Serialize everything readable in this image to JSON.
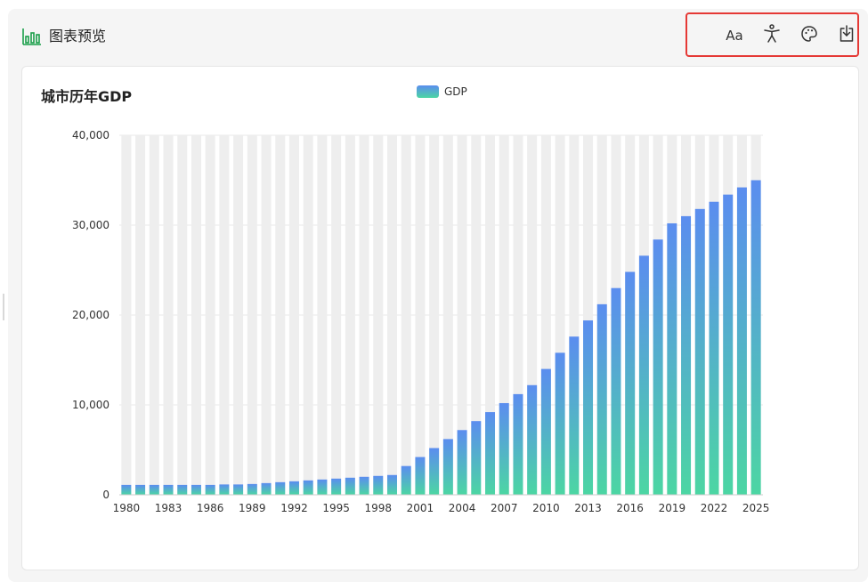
{
  "header": {
    "title": "图表预览",
    "icon": "bar-chart-icon"
  },
  "toolbar": {
    "font_label": "Aa",
    "items": [
      "font-size-icon",
      "accessibility-icon",
      "palette-icon",
      "download-icon"
    ]
  },
  "colors": {
    "bar_top": "#5b8def",
    "bar_bottom": "#4cd6a3",
    "bar_background": "#eeeeee",
    "toolbar_highlight": "#e53935",
    "header_icon": "#1a9e4a"
  },
  "chart_data": {
    "type": "bar",
    "title": "城市历年GDP",
    "legend": "top-center",
    "background_bars": true,
    "ylim": [
      0,
      40000
    ],
    "yticks": [
      "0",
      "10,000",
      "20,000",
      "30,000",
      "40,000"
    ],
    "xticks": [
      "1980",
      "1983",
      "1986",
      "1989",
      "1992",
      "1995",
      "1998",
      "2001",
      "2004",
      "2007",
      "2010",
      "2013",
      "2016",
      "2019",
      "2022",
      "2025"
    ],
    "categories": [
      "1980",
      "1981",
      "1982",
      "1983",
      "1984",
      "1985",
      "1986",
      "1987",
      "1988",
      "1989",
      "1990",
      "1991",
      "1992",
      "1993",
      "1994",
      "1995",
      "1996",
      "1997",
      "1998",
      "1999",
      "2000",
      "2001",
      "2002",
      "2003",
      "2004",
      "2005",
      "2006",
      "2007",
      "2008",
      "2009",
      "2010",
      "2011",
      "2012",
      "2013",
      "2014",
      "2015",
      "2016",
      "2017",
      "2018",
      "2019",
      "2020",
      "2021",
      "2022",
      "2023",
      "2024",
      "2025"
    ],
    "series": [
      {
        "name": "GDP",
        "values": [
          1100,
          1100,
          1100,
          1100,
          1100,
          1100,
          1100,
          1150,
          1150,
          1200,
          1300,
          1400,
          1500,
          1600,
          1700,
          1800,
          1900,
          2000,
          2100,
          2200,
          3200,
          4200,
          5200,
          6200,
          7200,
          8200,
          9200,
          10200,
          11200,
          12200,
          14000,
          15800,
          17600,
          19400,
          21200,
          23000,
          24800,
          26600,
          28400,
          30200,
          31000,
          31800,
          32600,
          33400,
          34200,
          35000
        ]
      }
    ]
  }
}
